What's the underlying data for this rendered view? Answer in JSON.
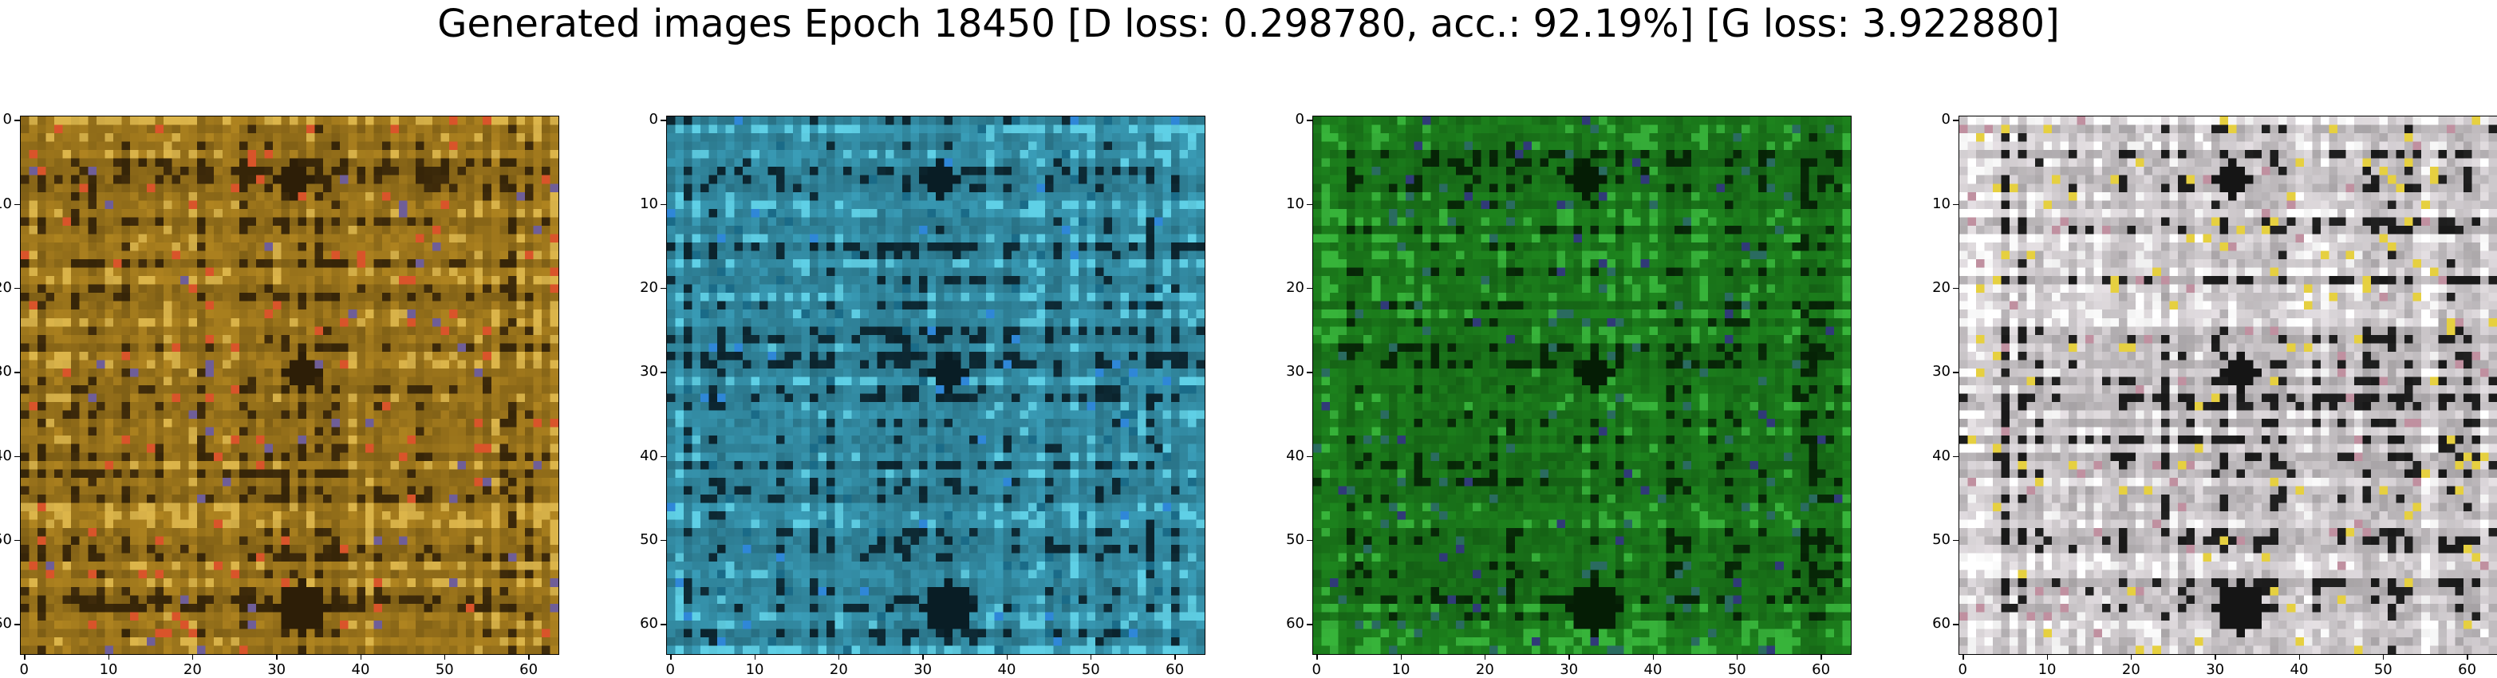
{
  "figure": {
    "title": "Generated images Epoch 18450 [D loss: 0.298780, acc.: 92.19%] [G loss: 3.922880]"
  },
  "axis_ticks": {
    "x": [
      "0",
      "10",
      "20",
      "30",
      "40",
      "50",
      "60"
    ],
    "y": [
      "0",
      "10",
      "20",
      "30",
      "40",
      "50",
      "60"
    ]
  },
  "panels": [
    {
      "id": "gen-image-1",
      "palette": {
        "base": "#b8891e",
        "light": "#dcb54a",
        "dark": "#5a3d0e",
        "accent": "#d9542a",
        "accent2": "#6f5e98"
      }
    },
    {
      "id": "gen-image-2",
      "palette": {
        "base": "#3aa3c0",
        "light": "#5fd0e6",
        "dark": "#123a4a",
        "accent": "#1a6b88",
        "accent2": "#2f87d8"
      }
    },
    {
      "id": "gen-image-3",
      "palette": {
        "base": "#1d8a1d",
        "light": "#37b43a",
        "dark": "#0a3a0a",
        "accent": "#2a6b60",
        "accent2": "#303a78"
      }
    },
    {
      "id": "gen-image-4",
      "palette": {
        "base": "#f4eef2",
        "light": "#ffffff",
        "dark": "#2a2a2a",
        "accent": "#e6d040",
        "accent2": "#c090a0"
      }
    }
  ]
}
